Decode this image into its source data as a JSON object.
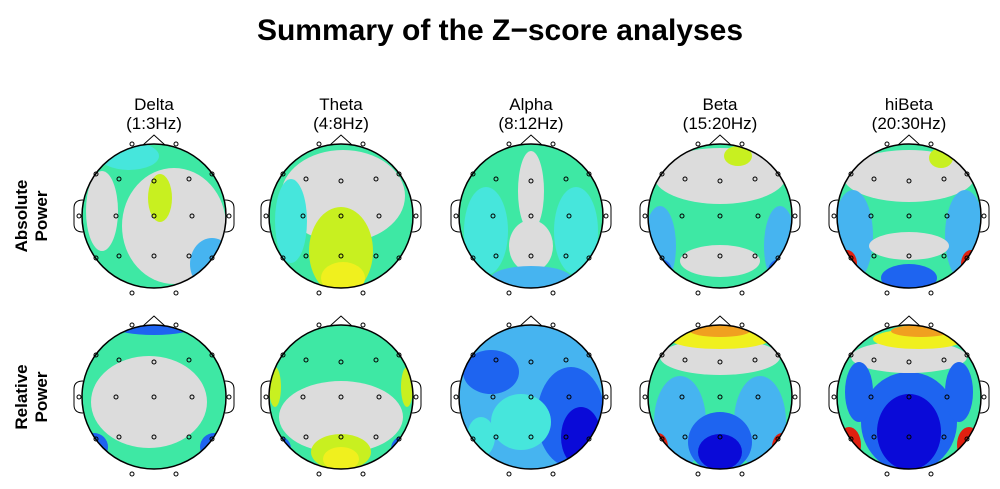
{
  "title": "Summary of the Z−score analyses",
  "bands": [
    {
      "name": "Delta",
      "range": "(1:3Hz)"
    },
    {
      "name": "Theta",
      "range": "(4:8Hz)"
    },
    {
      "name": "Alpha",
      "range": "(8:12Hz)"
    },
    {
      "name": "Beta",
      "range": "(15:20Hz)"
    },
    {
      "name": "hiBeta",
      "range": "(20:30Hz)"
    }
  ],
  "rows": [
    {
      "line1": "Absolute",
      "line2": "Power"
    },
    {
      "line1": "Relative",
      "line2": "Power"
    }
  ],
  "colors": {
    "deep_blue": "#0a0ad8",
    "blue": "#1e64f0",
    "light_blue": "#46b4f0",
    "cyan": "#46e6dc",
    "teal_green": "#3ee8a4",
    "neutral": "#dcdcdc",
    "yellow_green": "#c8f020",
    "yellow": "#f0f01e",
    "orange": "#f0a020",
    "red": "#e02010"
  }
}
